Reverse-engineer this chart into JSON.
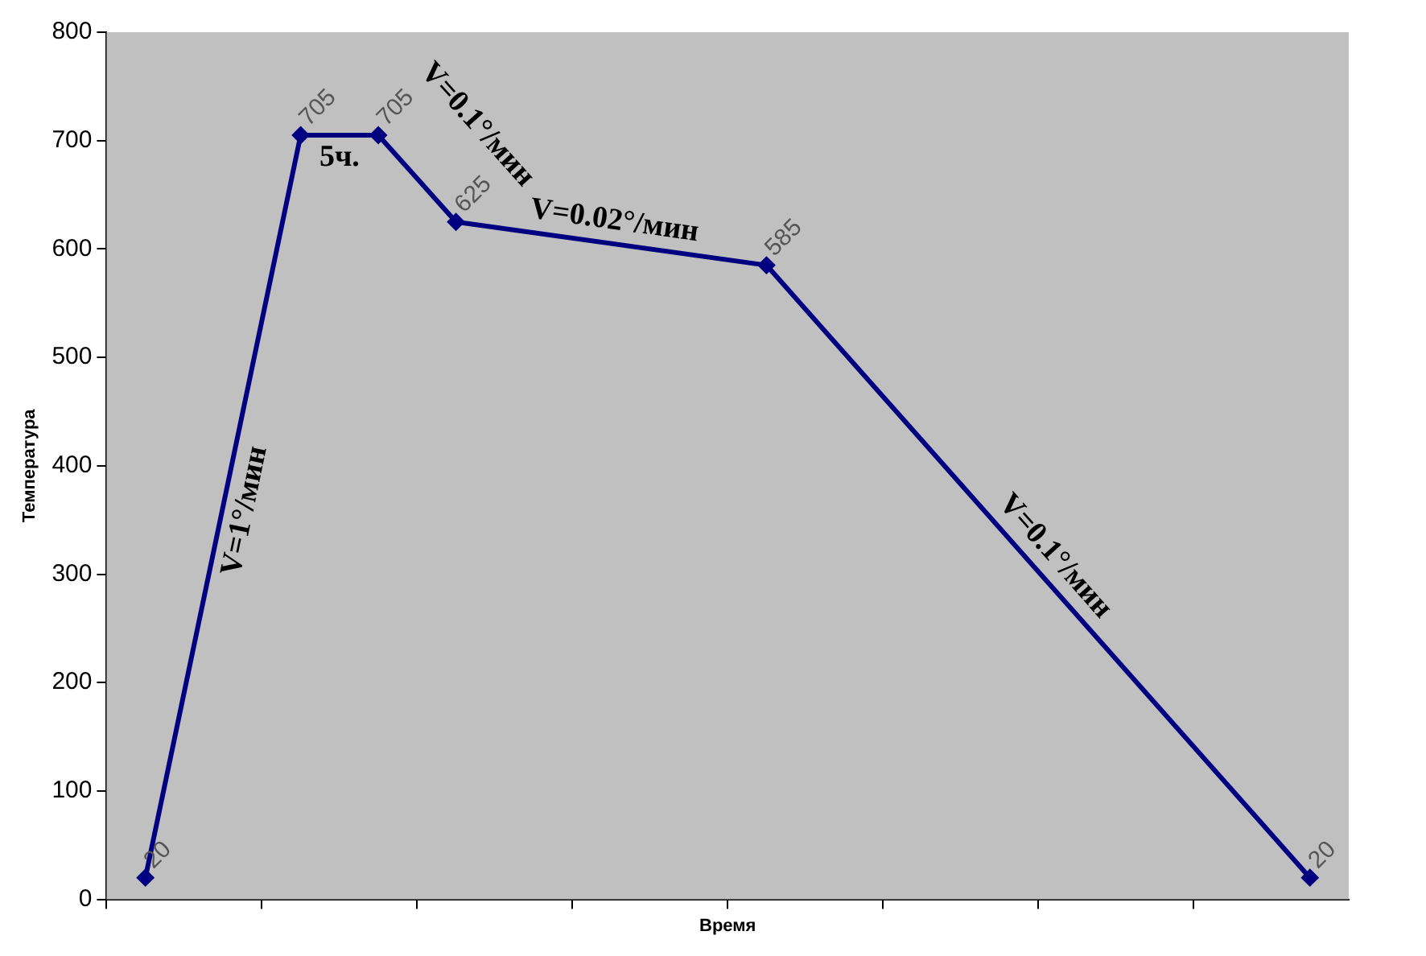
{
  "chart_data": {
    "type": "line",
    "xlabel": "Время",
    "ylabel": "Температура",
    "categories": [
      null,
      null,
      null,
      null,
      null,
      null,
      null,
      null,
      null,
      null,
      null,
      null,
      null,
      null,
      null,
      null
    ],
    "series": [
      {
        "color": "#000080",
        "values": [
          20,
          null,
          705,
          705,
          625,
          null,
          null,
          null,
          585,
          null,
          null,
          null,
          null,
          null,
          null,
          20
        ]
      }
    ],
    "ylim": [
      0,
      800
    ],
    "yticks": [
      0,
      100,
      200,
      300,
      400,
      500,
      600,
      700,
      800
    ],
    "grid": false,
    "legend": false,
    "marker": "diamond",
    "line_style": "solid",
    "data_labels": true,
    "tick_labels": "y",
    "annotations": [
      "V=1°/мин",
      "5ч.",
      "V=0.1°/мин",
      "V=0.02°/мин",
      "V=0.1°/мин"
    ]
  }
}
